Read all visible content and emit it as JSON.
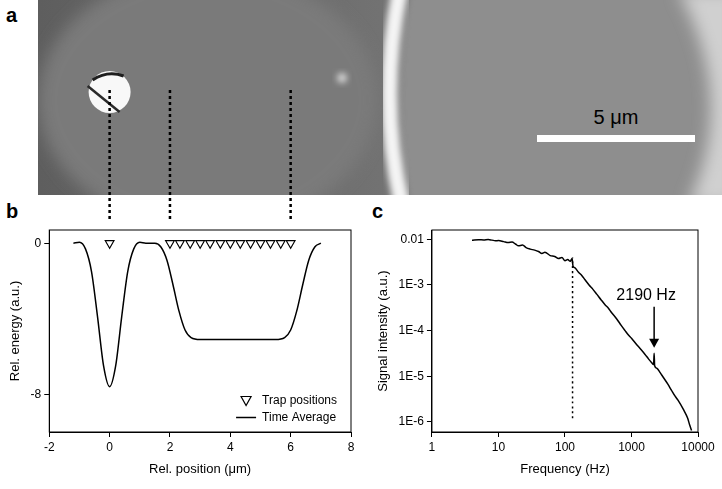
{
  "image_panel": {
    "panel": "a",
    "scale_bar": "5 μm"
  },
  "chart_data": [
    {
      "panel": "b",
      "type": "line",
      "x_label": "Rel. position (μm)",
      "y_label": "Rel. energy (a.u.)",
      "xlim": [
        -2,
        8
      ],
      "xticks": [
        -2,
        0,
        2,
        4,
        6,
        8
      ],
      "ylim": [
        -10,
        0.7
      ],
      "yticks": [
        -8,
        0
      ],
      "grid": false,
      "legend": "lower right",
      "series": [
        {
          "name": "Trap positions",
          "type": "scatter",
          "marker": "triangle-down",
          "color": "#000000",
          "x": [
            0,
            2,
            2.33,
            2.67,
            3,
            3.33,
            3.67,
            4,
            4.33,
            4.67,
            5,
            5.33,
            5.67,
            6
          ],
          "values": [
            0,
            0,
            0,
            0,
            0,
            0,
            0,
            0,
            0,
            0,
            0,
            0,
            0,
            0
          ]
        },
        {
          "name": "Time Average",
          "type": "line",
          "color": "#000000",
          "x": [
            -1.2,
            -1.0,
            -0.8,
            -0.6,
            -0.4,
            -0.2,
            0,
            0.2,
            0.4,
            0.6,
            0.8,
            1.0,
            1.2,
            1.5,
            1.7,
            1.9,
            2.1,
            2.3,
            2.5,
            2.7,
            3.0,
            3.5,
            4.0,
            4.5,
            5.0,
            5.5,
            5.8,
            6.0,
            6.2,
            6.4,
            6.6,
            6.8,
            7.0
          ],
          "values": [
            0,
            0.05,
            -0.3,
            -1.5,
            -3.9,
            -6.5,
            -7.6,
            -6.5,
            -3.9,
            -1.5,
            -0.3,
            0.05,
            0,
            0,
            -0.2,
            -0.9,
            -2.2,
            -3.6,
            -4.6,
            -5.0,
            -5.1,
            -5.1,
            -5.1,
            -5.1,
            -5.1,
            -5.1,
            -5.0,
            -4.6,
            -3.6,
            -2.2,
            -0.9,
            -0.2,
            0
          ]
        }
      ]
    },
    {
      "panel": "c",
      "type": "line",
      "log": true,
      "x_label": "Frequency (Hz)",
      "y_label": "Signal intensity (a.u.)",
      "xlim": [
        1,
        10000
      ],
      "xticks": [
        1,
        10,
        100,
        1000,
        10000
      ],
      "ylim": [
        6e-07,
        0.016
      ],
      "yticks": [
        {
          "value": 1e-06,
          "label": "1E-6"
        },
        {
          "value": 1e-05,
          "label": "1E-5"
        },
        {
          "value": 0.0001,
          "label": "1E-4"
        },
        {
          "value": 0.001,
          "label": "1E-3"
        },
        0.01
      ],
      "grid": false,
      "annotations": [
        {
          "text": "2190 Hz",
          "x": 2190,
          "y": 4e-05
        }
      ],
      "series": [
        {
          "color": "#000000",
          "x": [
            4,
            5,
            6,
            7,
            8,
            9,
            10,
            12,
            14,
            16,
            18,
            20,
            23,
            26,
            30,
            35,
            40,
            45,
            50,
            60,
            70,
            80,
            90,
            100,
            110,
            120,
            128,
            132,
            140,
            160,
            180,
            200,
            230,
            260,
            300,
            350,
            400,
            450,
            500,
            600,
            700,
            800,
            900,
            1000,
            1200,
            1400,
            1600,
            1800,
            2000,
            2150,
            2190,
            2230,
            2400,
            2700,
            3000,
            3500,
            4000,
            4500,
            5000,
            6000,
            7000,
            7500,
            8000
          ],
          "values": [
            0.0095,
            0.0098,
            0.0097,
            0.0099,
            0.0096,
            0.0093,
            0.0094,
            0.0089,
            0.0085,
            0.0087,
            0.0079,
            0.0072,
            0.0075,
            0.0066,
            0.0061,
            0.0058,
            0.0054,
            0.0049,
            0.0052,
            0.0044,
            0.0042,
            0.0038,
            0.004,
            0.0034,
            0.0036,
            0.0033,
            0.0038,
            0.0026,
            0.0024,
            0.0019,
            0.0016,
            0.0013,
            0.001,
            0.00082,
            0.00063,
            0.00047,
            0.00037,
            0.00031,
            0.00025,
            0.00018,
            0.00013,
            0.0001,
            8e-05,
            6.8e-05,
            4.9e-05,
            3.8e-05,
            3e-05,
            2.4e-05,
            2e-05,
            1.8e-05,
            3.2e-05,
            1.7e-05,
            1.5e-05,
            1.2e-05,
            9.5e-06,
            6.8e-06,
            4.9e-06,
            3.7e-06,
            3e-06,
            1.9e-06,
            1.2e-06,
            8.5e-07,
            6.5e-07
          ]
        },
        {
          "color": "#000000",
          "line_style": "dotted",
          "x": [
            130,
            130
          ],
          "values": [
            1.2e-06,
            0.004
          ]
        }
      ]
    }
  ]
}
